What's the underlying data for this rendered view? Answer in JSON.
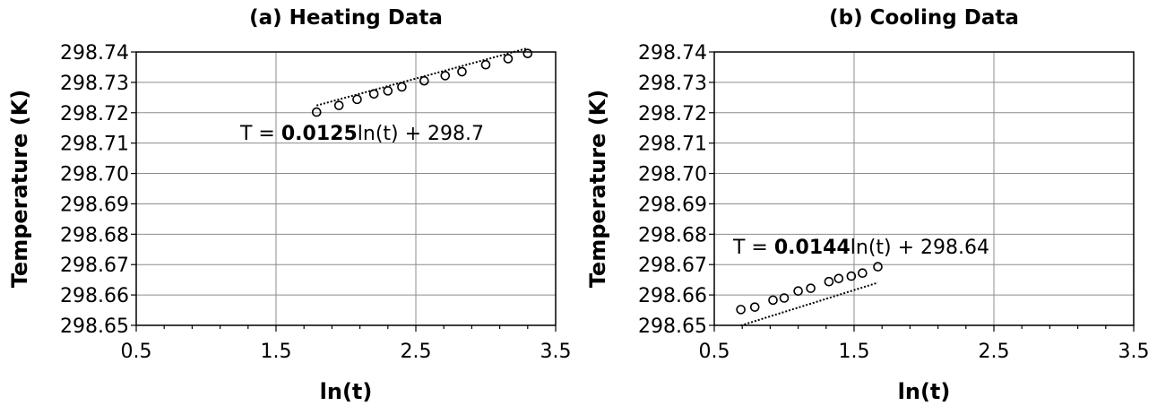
{
  "chart_data": [
    {
      "type": "scatter",
      "title": "(a) Heating Data",
      "xlabel": "ln(t)",
      "ylabel": "Temperature (K)",
      "xlim": [
        0.5,
        3.5
      ],
      "ylim": [
        298.65,
        298.74
      ],
      "xticks": [
        0.5,
        1.5,
        2.5,
        3.5
      ],
      "xtick_labels": [
        "0.5",
        "1.5",
        "2.5",
        "3.5"
      ],
      "yticks": [
        298.65,
        298.66,
        298.67,
        298.68,
        298.69,
        298.7,
        298.71,
        298.72,
        298.73,
        298.74
      ],
      "ytick_labels": [
        "298.65",
        "298.66",
        "298.67",
        "298.68",
        "298.69",
        "298.70",
        "298.71",
        "298.72",
        "298.73",
        "298.74"
      ],
      "grid": true,
      "x": [
        1.79,
        1.95,
        2.08,
        2.2,
        2.3,
        2.4,
        2.56,
        2.71,
        2.83,
        3.0,
        3.16,
        3.3
      ],
      "y": [
        298.7202,
        298.7224,
        298.7244,
        298.7262,
        298.7272,
        298.7285,
        298.7305,
        298.7322,
        298.7335,
        298.7358,
        298.7378,
        298.7395
      ],
      "trendline": {
        "slope": 0.0125,
        "intercept": 298.7
      },
      "equation": {
        "prefix": "T = ",
        "coefficient": "0.0125",
        "suffix": "ln(t) + 298.7"
      }
    },
    {
      "type": "scatter",
      "title": "(b) Cooling Data",
      "xlabel": "ln(t)",
      "ylabel": "Temperature (K)",
      "xlim": [
        0.5,
        3.5
      ],
      "ylim": [
        298.65,
        298.74
      ],
      "xticks": [
        0.5,
        1.5,
        2.5,
        3.5
      ],
      "xtick_labels": [
        "0.5",
        "1.5",
        "2.5",
        "3.5"
      ],
      "yticks": [
        298.65,
        298.66,
        298.67,
        298.68,
        298.69,
        298.7,
        298.71,
        298.72,
        298.73,
        298.74
      ],
      "ytick_labels": [
        "298.65",
        "298.66",
        "298.67",
        "298.68",
        "298.69",
        "298.70",
        "298.71",
        "298.72",
        "298.73",
        "298.74"
      ],
      "grid": true,
      "x": [
        0.69,
        0.79,
        0.92,
        1.0,
        1.1,
        1.19,
        1.32,
        1.39,
        1.48,
        1.56,
        1.67
      ],
      "y": [
        298.6552,
        298.656,
        298.6583,
        298.659,
        298.6613,
        298.6622,
        298.6644,
        298.6654,
        298.6662,
        298.6672,
        298.6693
      ],
      "trendline": {
        "slope": 0.0144,
        "intercept": 298.64
      },
      "equation": {
        "prefix": "T = ",
        "coefficient": "0.0144",
        "suffix": "ln(t) + 298.64"
      }
    }
  ]
}
